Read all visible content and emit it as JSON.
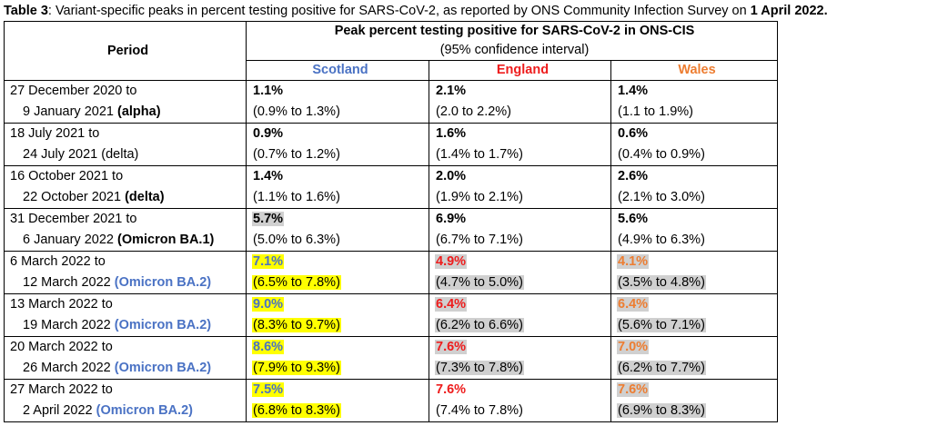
{
  "caption": {
    "label": "Table 3",
    "text": ": Variant-specific peaks in percent testing positive for SARS-CoV-2, as reported by ONS Community Infection Survey on ",
    "date": "1 April 2022."
  },
  "header": {
    "period": "Period",
    "peak_title": "Peak percent testing positive for SARS-CoV-2 in ONS-CIS",
    "peak_subtitle": "(95% confidence interval)",
    "countries": [
      "Scotland",
      "England",
      "Wales"
    ]
  },
  "colors": {
    "scotland": "#4a72c4",
    "england": "#ee1c1c",
    "wales": "#ed7d31",
    "highlight_yellow": "#ffff00",
    "highlight_grey": "#d0d0d0"
  },
  "rows": [
    {
      "start": "27 December 2020 to",
      "end": "9 January 2021 ",
      "variant": "(alpha)",
      "variant_style": "bold",
      "cells": [
        {
          "peak": "1.1%",
          "ci": "(0.9% to 1.3%)",
          "fg": "black",
          "bg": "none"
        },
        {
          "peak": "2.1%",
          "ci": "(2.0 to 2.2%)",
          "fg": "black",
          "bg": "none"
        },
        {
          "peak": "1.4%",
          "ci": "(1.1 to 1.9%)",
          "fg": "black",
          "bg": "none"
        }
      ]
    },
    {
      "start": "18 July 2021 to",
      "end": "24 July 2021 ",
      "variant": "(delta)",
      "variant_style": "normal",
      "cells": [
        {
          "peak": "0.9%",
          "ci": "(0.7% to 1.2%)",
          "fg": "black",
          "bg": "none"
        },
        {
          "peak": "1.6%",
          "ci": "(1.4% to 1.7%)",
          "fg": "black",
          "bg": "none"
        },
        {
          "peak": "0.6%",
          "ci": "(0.4% to 0.9%)",
          "fg": "black",
          "bg": "none"
        }
      ]
    },
    {
      "start": "16 October 2021 to",
      "end": "22 October 2021 ",
      "variant": "(delta)",
      "variant_style": "bold",
      "cells": [
        {
          "peak": "1.4%",
          "ci": "(1.1% to 1.6%)",
          "fg": "black",
          "bg": "none"
        },
        {
          "peak": "2.0%",
          "ci": "(1.9% to 2.1%)",
          "fg": "black",
          "bg": "none"
        },
        {
          "peak": "2.6%",
          "ci": "(2.1% to 3.0%)",
          "fg": "black",
          "bg": "none"
        }
      ]
    },
    {
      "start": "31 December 2021 to",
      "end": "6 January 2022 ",
      "variant": "(Omicron BA.1)",
      "variant_style": "bold",
      "cells": [
        {
          "peak": "5.7%",
          "ci": "(5.0% to 6.3%)",
          "fg": "black",
          "bg": "grey-peak"
        },
        {
          "peak": "6.9%",
          "ci": "(6.7% to 7.1%)",
          "fg": "black",
          "bg": "none"
        },
        {
          "peak": "5.6%",
          "ci": "(4.9% to 6.3%)",
          "fg": "black",
          "bg": "none"
        }
      ]
    },
    {
      "start": "6 March 2022 to",
      "end": "12 March 2022 ",
      "variant": "(Omicron BA.2)",
      "variant_style": "bold-scot",
      "cells": [
        {
          "peak": "7.1%",
          "ci": "(6.5% to 7.8%)",
          "fg": "scot",
          "bg": "yellow"
        },
        {
          "peak": "4.9%",
          "ci": "(4.7% to 5.0%)",
          "fg": "eng",
          "bg": "grey"
        },
        {
          "peak": "4.1%",
          "ci": "(3.5% to 4.8%)",
          "fg": "wal",
          "bg": "grey"
        }
      ]
    },
    {
      "start": "13 March 2022 to",
      "end": "19 March 2022 ",
      "variant": "(Omicron BA.2)",
      "variant_style": "bold-scot",
      "cells": [
        {
          "peak": "9.0%",
          "ci": "(8.3% to 9.7%)",
          "fg": "scot",
          "bg": "yellow"
        },
        {
          "peak": "6.4%",
          "ci": "(6.2% to 6.6%)",
          "fg": "eng",
          "bg": "grey"
        },
        {
          "peak": "6.4%",
          "ci": "(5.6% to 7.1%)",
          "fg": "wal",
          "bg": "grey"
        }
      ]
    },
    {
      "start": "20 March 2022 to",
      "end": "26 March 2022 ",
      "variant": "(Omicron BA.2)",
      "variant_style": "bold-scot",
      "cells": [
        {
          "peak": "8.6%",
          "ci": "(7.9% to 9.3%)",
          "fg": "scot",
          "bg": "yellow"
        },
        {
          "peak": "7.6%",
          "ci": "(7.3% to 7.8%)",
          "fg": "eng",
          "bg": "grey"
        },
        {
          "peak": "7.0%",
          "ci": "(6.2% to 7.7%)",
          "fg": "wal",
          "bg": "grey"
        }
      ]
    },
    {
      "start": "27 March 2022 to",
      "end": "2 April 2022 ",
      "variant": "(Omicron BA.2)",
      "variant_style": "bold-scot",
      "cells": [
        {
          "peak": "7.5%",
          "ci": "(6.8% to 8.3%)",
          "fg": "scot",
          "bg": "yellow"
        },
        {
          "peak": "7.6%",
          "ci": "(7.4% to 7.8%)",
          "fg": "eng",
          "bg": "none"
        },
        {
          "peak": "7.6%",
          "ci": "(6.9% to 8.3%)",
          "fg": "wal",
          "bg": "grey"
        }
      ]
    }
  ]
}
